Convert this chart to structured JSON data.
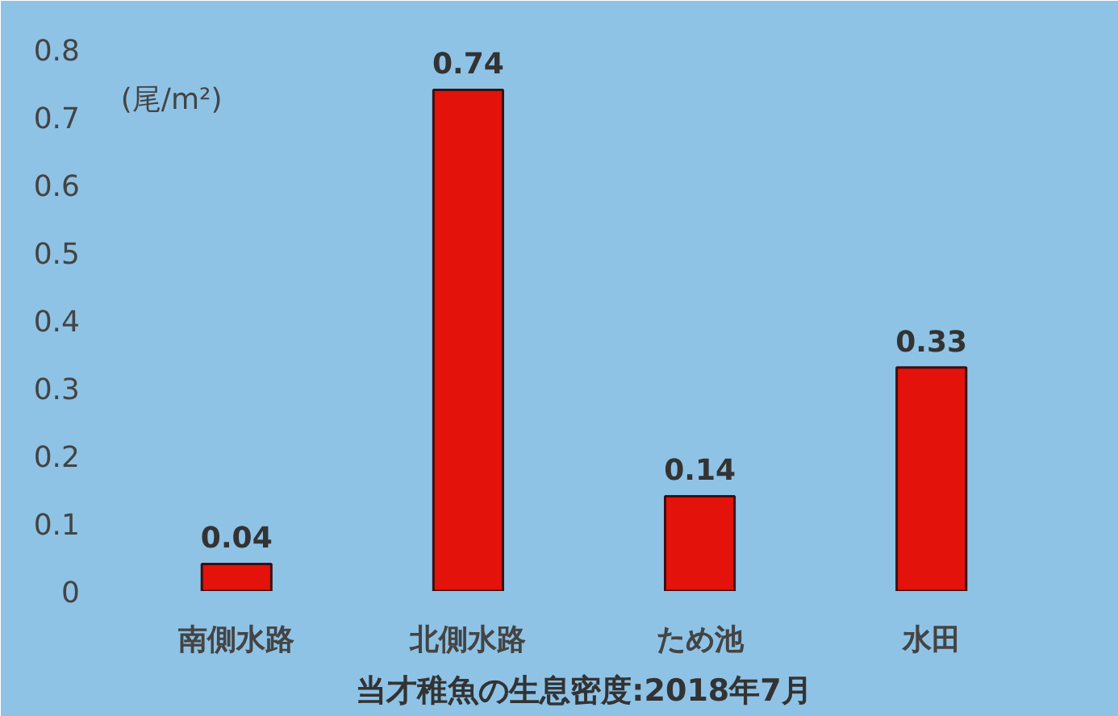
{
  "chart_data": {
    "type": "bar",
    "title": "当才稚魚の生息密度:2018年7月",
    "ylabel": "(尾/m²)",
    "categories": [
      "南側水路",
      "北側水路",
      "ため池",
      "水田"
    ],
    "values": [
      0.04,
      0.74,
      0.14,
      0.33
    ],
    "color": "#e3120b",
    "ylim": [
      0,
      0.8
    ],
    "yticks": [
      0,
      0.1,
      0.2,
      0.3,
      0.4,
      0.5,
      0.6,
      0.7,
      0.8
    ],
    "grid": false,
    "data_labels": true
  }
}
